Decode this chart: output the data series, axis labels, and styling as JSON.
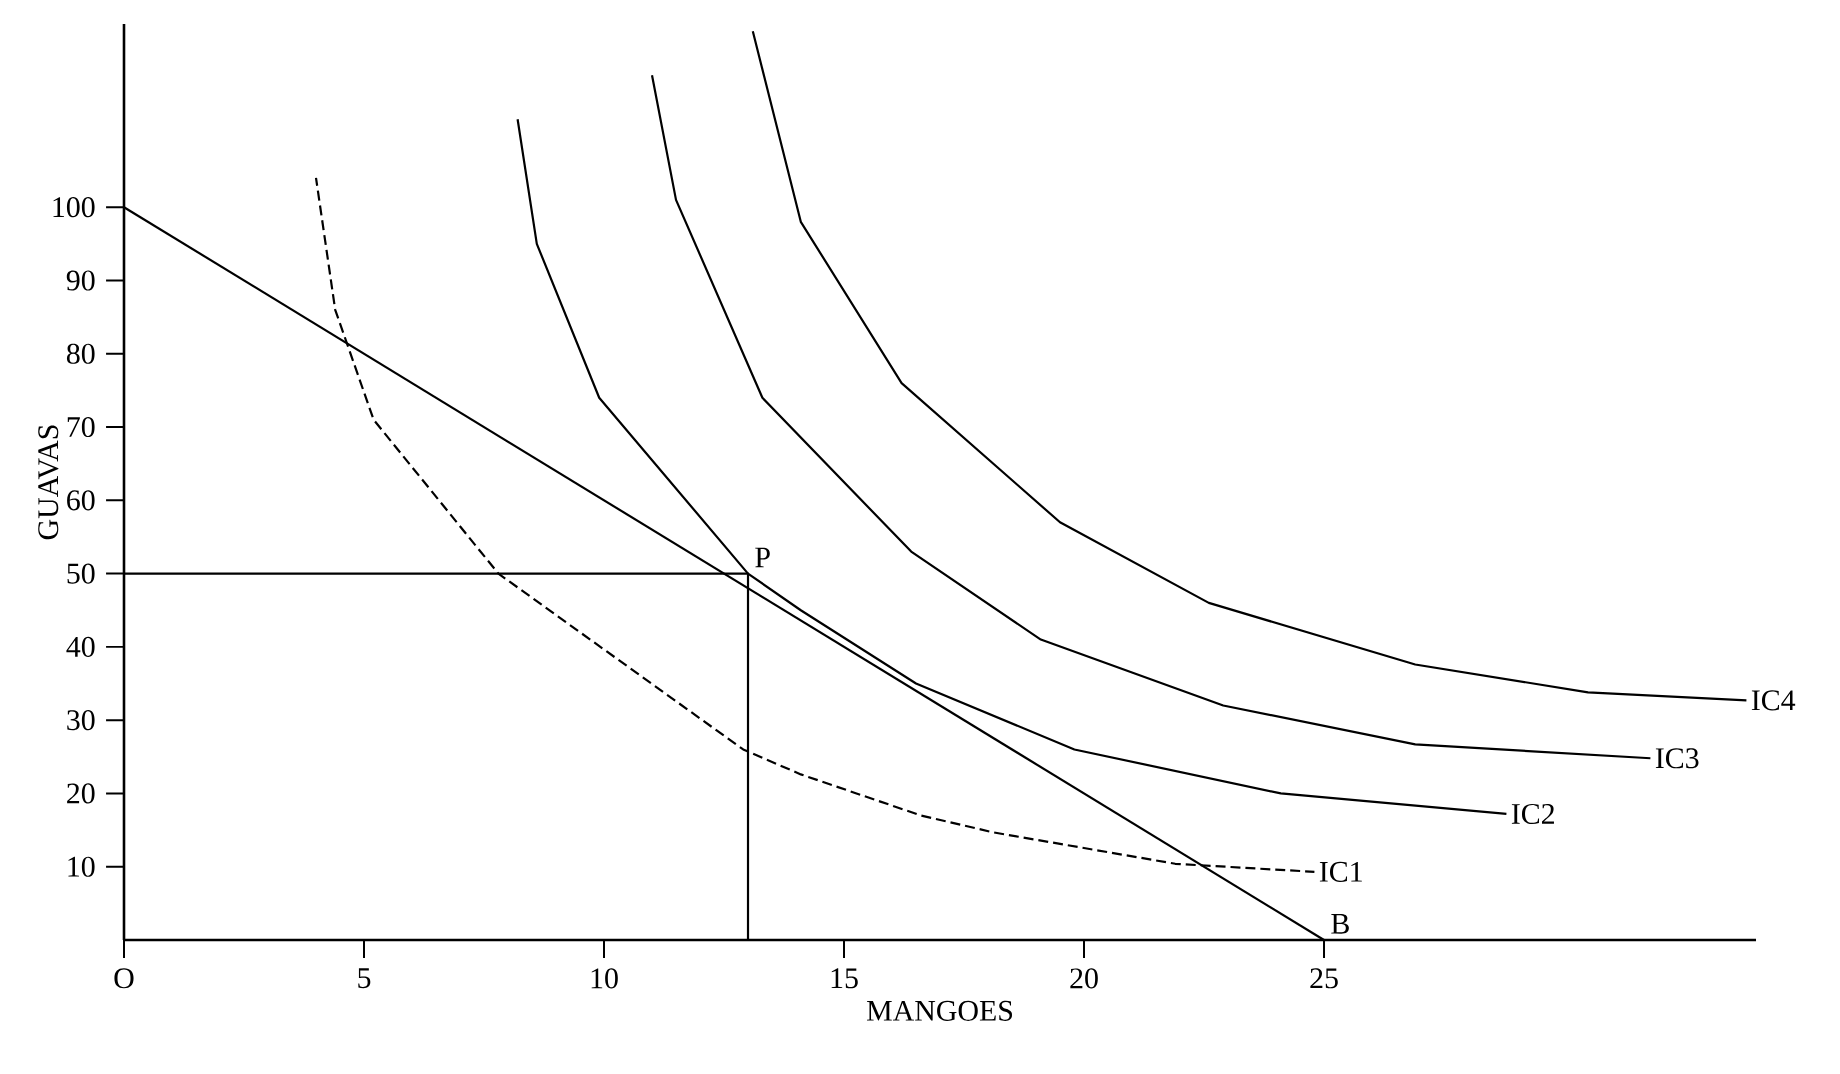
{
  "chart_data": {
    "type": "line",
    "xlabel": "MANGOES",
    "ylabel": "GUAVAS",
    "xlim": [
      0,
      34
    ],
    "ylim": [
      0,
      125
    ],
    "xticks": [
      {
        "value": 0,
        "label": "O"
      },
      5,
      10,
      15,
      20,
      25
    ],
    "yticks": [
      10,
      20,
      30,
      40,
      50,
      60,
      70,
      80,
      90,
      100
    ],
    "grid": false,
    "legend": false,
    "marker": "none",
    "annotations": [
      {
        "text": "P",
        "x": 13,
        "y": 50
      },
      {
        "text": "B",
        "x": 25,
        "y": 0
      }
    ],
    "series": [
      {
        "name": "IC1",
        "color": "#000000",
        "line_style": "dashed",
        "x": [
          4.0,
          4.4,
          5.2,
          7.8,
          12.9,
          14.1,
          16.6,
          18.1,
          21.9,
          24.8
        ],
        "values": [
          104,
          86,
          71,
          50,
          26,
          22.6,
          17,
          14.7,
          10.4,
          9.3
        ]
      },
      {
        "name": "IC2",
        "color": "#000000",
        "line_style": "solid",
        "x": [
          8.2,
          8.6,
          9.9,
          13.0,
          14.1,
          16.5,
          19.8,
          24.1,
          28.8
        ],
        "values": [
          112,
          95,
          74,
          50,
          45,
          35,
          26,
          20,
          17.2
        ]
      },
      {
        "name": "IC3",
        "color": "#000000",
        "line_style": "solid",
        "x": [
          11.0,
          11.5,
          13.3,
          16.4,
          19.1,
          22.9,
          26.9,
          31.8
        ],
        "values": [
          118,
          101,
          74,
          53,
          41,
          32,
          26.7,
          24.8
        ]
      },
      {
        "name": "IC4",
        "color": "#000000",
        "line_style": "solid",
        "x": [
          13.1,
          14.1,
          16.2,
          19.5,
          22.6,
          26.9,
          30.5,
          33.8
        ],
        "values": [
          124,
          98,
          76,
          57,
          46,
          37.6,
          33.8,
          32.7
        ]
      },
      {
        "color": "#000000",
        "line_style": "solid",
        "x": [
          0,
          25
        ],
        "values": [
          100,
          0
        ]
      },
      {
        "color": "#000000",
        "line_style": "solid",
        "x": [
          0,
          13,
          13
        ],
        "values": [
          50,
          50,
          0
        ]
      }
    ]
  }
}
